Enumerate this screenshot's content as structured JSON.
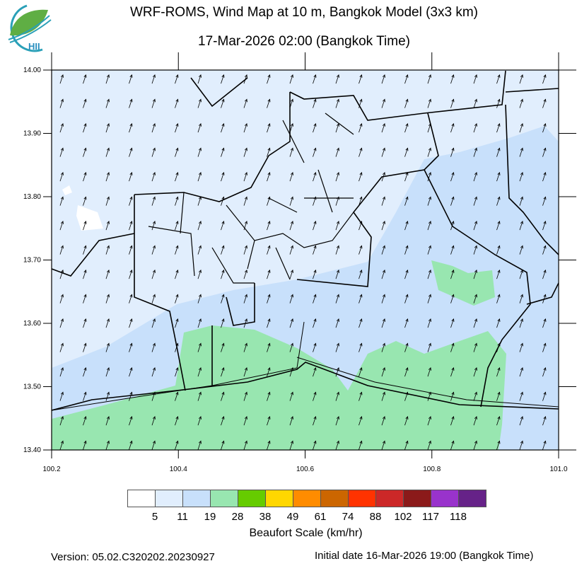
{
  "header": {
    "title": "WRF-ROMS, Wind Map at 10 m, Bangkok Model (3x3 km)",
    "subtitle": "17-Mar-2026 02:00 (Bangkok Time)",
    "logo_text": "HII"
  },
  "chart_data": {
    "type": "map",
    "xlim": [
      100.2,
      101.0
    ],
    "ylim": [
      13.4,
      14.0
    ],
    "x_ticks": [
      "100.2",
      "100.4",
      "100.6",
      "100.8",
      "101.0"
    ],
    "y_ticks": [
      "14.00",
      "13.90",
      "13.80",
      "13.70",
      "13.60",
      "13.50",
      "13.40"
    ],
    "wind_direction": "from SSW (arrows pointing NNE)",
    "field_colors": {
      "calm": "#ffffff",
      "5-11": "#e1eefd",
      "11-19": "#c8e0fb",
      "19-28": "#98e6b0"
    }
  },
  "legend": {
    "title": "Beaufort Scale (km/hr)",
    "colors": [
      "#ffffff",
      "#e1eefd",
      "#c8e0fb",
      "#98e6b0",
      "#66cc00",
      "#ffd700",
      "#ff8c00",
      "#cc6600",
      "#ff3300",
      "#cc2828",
      "#8b1a1a",
      "#9933cc",
      "#662288"
    ],
    "levels": [
      "5",
      "11",
      "19",
      "28",
      "38",
      "49",
      "61",
      "74",
      "88",
      "102",
      "117",
      "118"
    ]
  },
  "footer": {
    "version": "Version: 05.02.C320202.20230927",
    "initial_date": "Initial date 16-Mar-2026 19:00 (Bangkok Time)"
  }
}
